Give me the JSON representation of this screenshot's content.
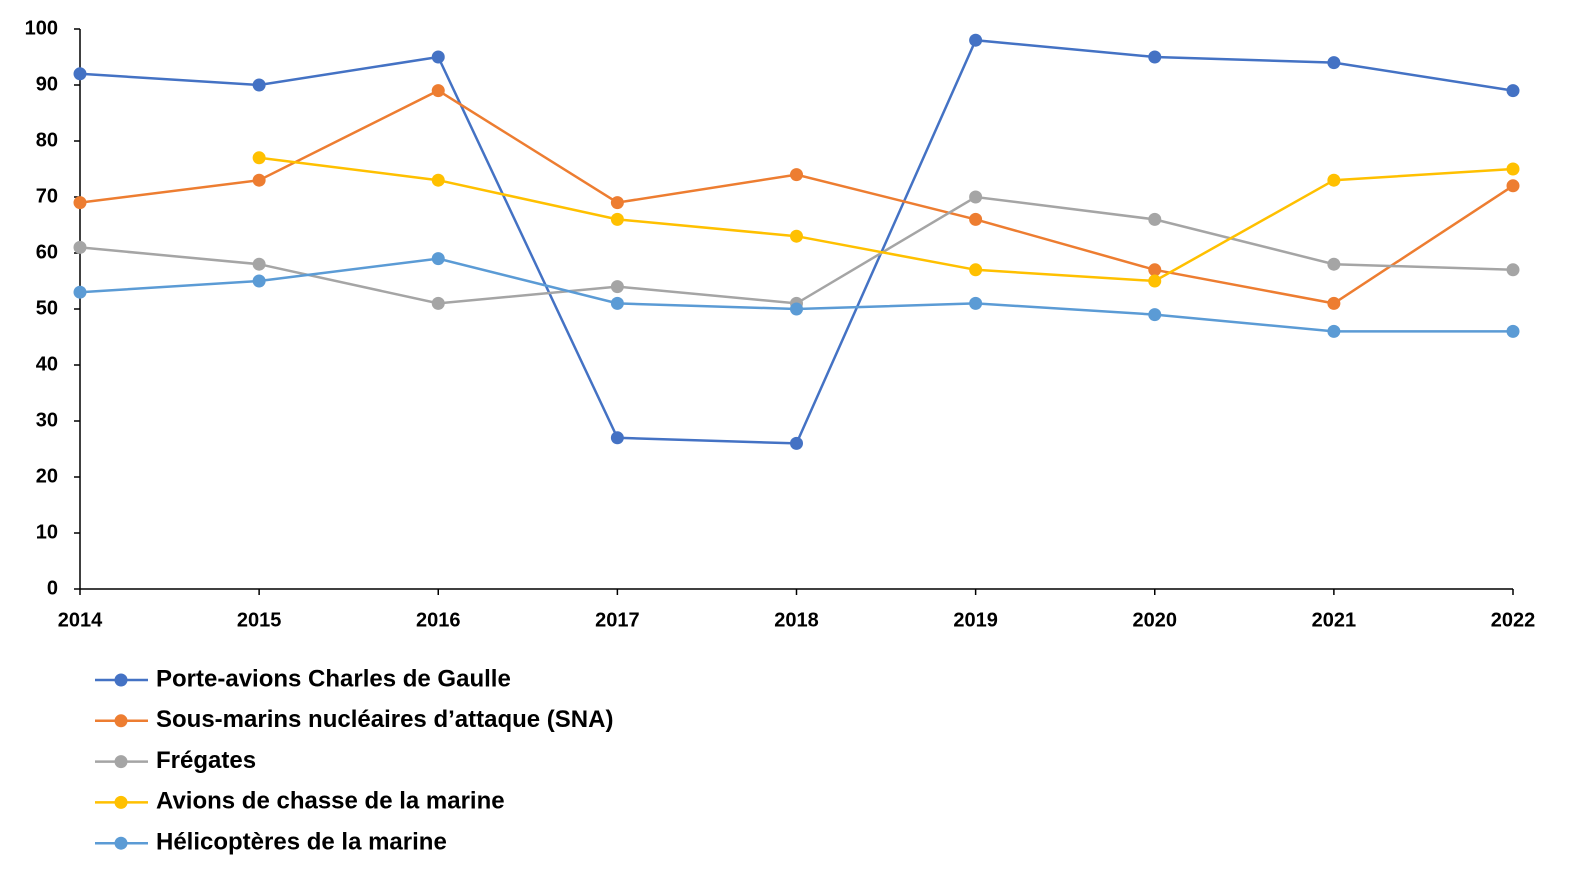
{
  "chart_data": {
    "type": "line",
    "x": [
      2014,
      2015,
      2016,
      2017,
      2018,
      2019,
      2020,
      2021,
      2022
    ],
    "xlim": [
      2014,
      2022
    ],
    "xticks": [
      2014,
      2015,
      2016,
      2017,
      2018,
      2019,
      2020,
      2021,
      2022
    ],
    "ylim": [
      0,
      100
    ],
    "yticks": [
      0,
      10,
      20,
      30,
      40,
      50,
      60,
      70,
      80,
      90,
      100
    ],
    "grid": false,
    "legend": "bottom",
    "series": [
      {
        "name": "Porte-avions Charles de Gaulle",
        "color": "#4472c4",
        "values": [
          92,
          90,
          95,
          27,
          26,
          98,
          95,
          94,
          89
        ]
      },
      {
        "name": "Sous-marins nucléaires d’attaque (SNA)",
        "color": "#ed7d31",
        "values": [
          69,
          73,
          89,
          69,
          74,
          66,
          57,
          51,
          72
        ]
      },
      {
        "name": "Frégates",
        "color": "#a5a5a5",
        "values": [
          61,
          58,
          51,
          54,
          51,
          70,
          66,
          58,
          57
        ]
      },
      {
        "name": "Avions de chasse de la marine",
        "color": "#ffc000",
        "values": [
          null,
          77,
          73,
          66,
          63,
          57,
          55,
          73,
          75
        ]
      },
      {
        "name": "Hélicoptères de la marine",
        "color": "#5b9bd5",
        "values": [
          53,
          55,
          59,
          51,
          50,
          51,
          49,
          46,
          46
        ]
      }
    ]
  }
}
